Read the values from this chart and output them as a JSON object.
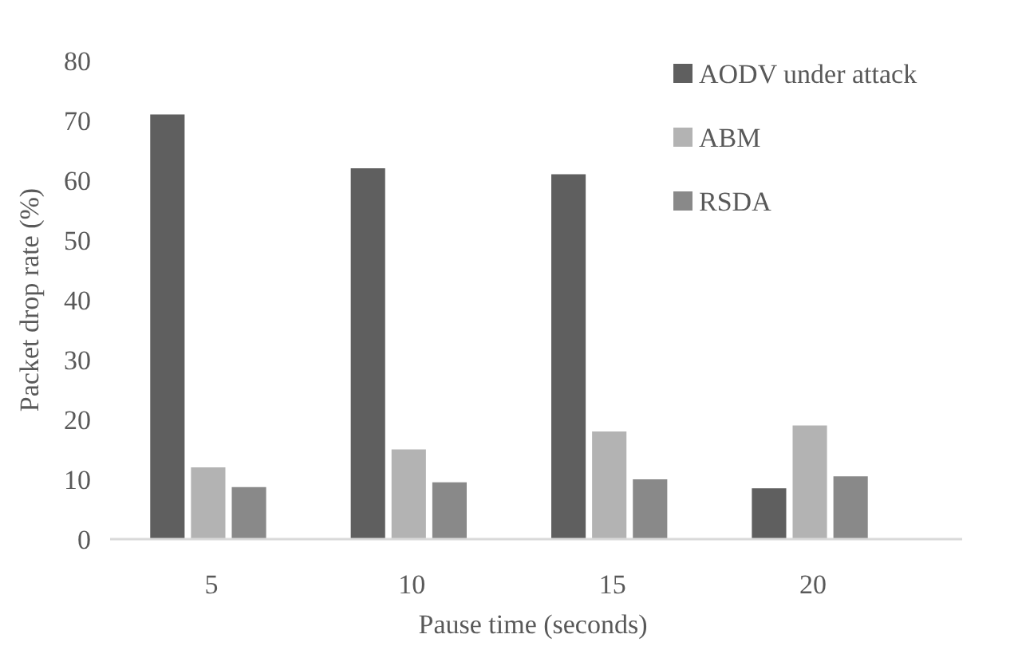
{
  "chart_data": {
    "type": "bar",
    "xlabel": "Pause time (seconds)",
    "ylabel": "Packet drop rate (%)",
    "categories": [
      "5",
      "10",
      "15",
      "20"
    ],
    "series": [
      {
        "name": "AODV under attack",
        "color": "#5f5f5f",
        "values": [
          71,
          62,
          61,
          8.5
        ]
      },
      {
        "name": "ABM",
        "color": "#b3b3b3",
        "values": [
          12,
          15,
          18,
          19
        ]
      },
      {
        "name": "RSDA",
        "color": "#898989",
        "values": [
          8.7,
          9.5,
          10,
          10.5
        ]
      }
    ],
    "ylim": [
      0,
      80
    ],
    "yticks": [
      0,
      10,
      20,
      30,
      40,
      50,
      60,
      70,
      80
    ],
    "grid": false,
    "legend": "top right"
  }
}
